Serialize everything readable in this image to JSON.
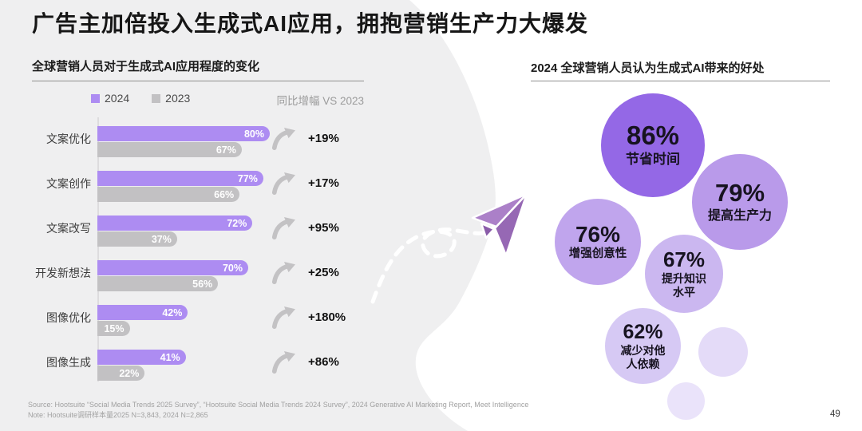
{
  "slide": {
    "title": "广告主加倍投入生成式AI应用，拥抱营销生产力大爆发",
    "page_number": "49",
    "footer": {
      "source": "Source: Hootsuite “Social Media Trends 2025 Survey”, “Hootsuite Social Media Trends 2024 Survey”, 2024 Generative AI Marketing Report, Meet Intelligence",
      "note": "Note: Hootsuite调研样本量2025 N=3,843, 2024 N=2,865"
    }
  },
  "chart_data": [
    {
      "type": "bar",
      "orientation": "horizontal",
      "title": "全球营销人员对于生成式AI应用程度的变化",
      "categories": [
        "文案优化",
        "文案创作",
        "文案改写",
        "开发新想法",
        "图像优化",
        "图像生成"
      ],
      "series": [
        {
          "name": "2024",
          "color": "#ad8cf2",
          "values": [
            80,
            77,
            72,
            70,
            42,
            41
          ]
        },
        {
          "name": "2023",
          "color": "#c2c1c3",
          "values": [
            67,
            66,
            37,
            56,
            15,
            22
          ]
        }
      ],
      "unit": "%",
      "xlim": [
        0,
        100
      ],
      "growth_header": "同比增幅 VS 2023",
      "growth_values": [
        "+19%",
        "+17%",
        "+95%",
        "+25%",
        "+180%",
        "+86%"
      ]
    },
    {
      "type": "bubble",
      "title": "2024 全球营销人员认为生成式AI带来的好处",
      "points": [
        {
          "value": 86,
          "unit": "%",
          "label_lines": [
            "节省时间"
          ],
          "color": "#9468e6"
        },
        {
          "value": 79,
          "unit": "%",
          "label_lines": [
            "提高生产力"
          ],
          "color": "#b99aea"
        },
        {
          "value": 76,
          "unit": "%",
          "label_lines": [
            "增强创意性"
          ],
          "color": "#c0a5ed"
        },
        {
          "value": 67,
          "unit": "%",
          "label_lines": [
            "提升知识",
            "水平"
          ],
          "color": "#cbb7f0"
        },
        {
          "value": 62,
          "unit": "%",
          "label_lines": [
            "减少对他",
            "人依赖"
          ],
          "color": "#d6c9f4"
        }
      ]
    }
  ]
}
